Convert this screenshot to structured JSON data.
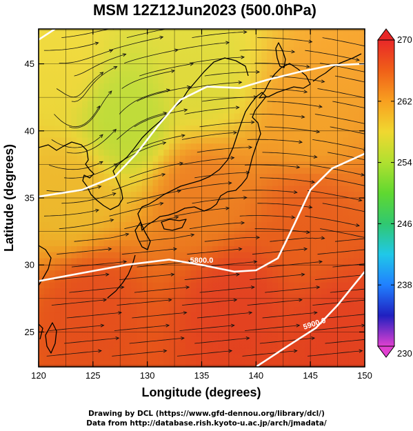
{
  "chart_data": {
    "type": "heatmap",
    "title": "MSM 12Z12Jun2023 (500.0hPa)",
    "xlabel": "Longitude (degrees)",
    "ylabel": "Latitude  (degrees)",
    "xlim": [
      120,
      150
    ],
    "ylim": [
      22.4,
      47.6
    ],
    "xticks": [
      "120",
      "125",
      "130",
      "135",
      "140",
      "145",
      "150"
    ],
    "yticks": [
      "25",
      "30",
      "35",
      "40",
      "45"
    ],
    "grid": true,
    "colorbar": {
      "range": [
        230,
        270
      ],
      "ticks": [
        "270",
        "262",
        "254",
        "246",
        "238",
        "230"
      ],
      "extend": "both",
      "palette": [
        "#e040d0",
        "#2020c0",
        "#2080ff",
        "#20c8e8",
        "#30c870",
        "#60d830",
        "#b0e030",
        "#f0d830",
        "#f8a020",
        "#f06018",
        "#e82828"
      ]
    },
    "temperature_field_samples": [
      {
        "lon": 122,
        "lat": 45,
        "value": 258
      },
      {
        "lon": 128,
        "lat": 41,
        "value": 255
      },
      {
        "lon": 135,
        "lat": 44,
        "value": 257
      },
      {
        "lon": 145,
        "lat": 41,
        "value": 262
      },
      {
        "lon": 123,
        "lat": 35,
        "value": 260
      },
      {
        "lon": 135,
        "lat": 35,
        "value": 264
      },
      {
        "lon": 145,
        "lat": 33,
        "value": 266
      },
      {
        "lon": 125,
        "lat": 27,
        "value": 267
      },
      {
        "lon": 138,
        "lat": 27,
        "value": 268
      },
      {
        "lon": 148,
        "lat": 25,
        "value": 268
      }
    ],
    "height_contours": [
      {
        "label": "",
        "points": [
          [
            120,
            46.8
          ],
          [
            121.5,
            47.6
          ]
        ]
      },
      {
        "label": "",
        "points": [
          [
            120,
            35.1
          ],
          [
            124,
            35.6
          ],
          [
            127,
            36.6
          ],
          [
            129,
            38.3
          ],
          [
            131,
            40.4
          ],
          [
            133,
            42.3
          ],
          [
            135.5,
            43.3
          ],
          [
            138.5,
            43.2
          ],
          [
            141,
            43.8
          ],
          [
            144,
            44.4
          ],
          [
            147,
            44.9
          ],
          [
            150,
            45.0
          ]
        ]
      },
      {
        "label": "5800.0",
        "points": [
          [
            120,
            28.8
          ],
          [
            124,
            29.4
          ],
          [
            128,
            30.0
          ],
          [
            132,
            30.4
          ],
          [
            135,
            30.0
          ],
          [
            138,
            29.5
          ],
          [
            140,
            29.6
          ],
          [
            142,
            30.5
          ],
          [
            143.5,
            33.0
          ],
          [
            145,
            35.6
          ],
          [
            147,
            37.2
          ],
          [
            150,
            38.3
          ]
        ]
      },
      {
        "label": "5900.0",
        "points": [
          [
            140,
            22.4
          ],
          [
            143,
            24.0
          ],
          [
            145.5,
            25.3
          ],
          [
            147.5,
            27.0
          ],
          [
            150,
            29.5
          ]
        ]
      }
    ],
    "wind_field": {
      "style": "streamlines",
      "flow": "westerly"
    }
  },
  "footer": {
    "line1": "Drawing by DCL (https://www.gfd-dennou.org/library/dcl/)",
    "line2": "Data from http://database.rish.kyoto-u.ac.jp/arch/jmadata/"
  }
}
